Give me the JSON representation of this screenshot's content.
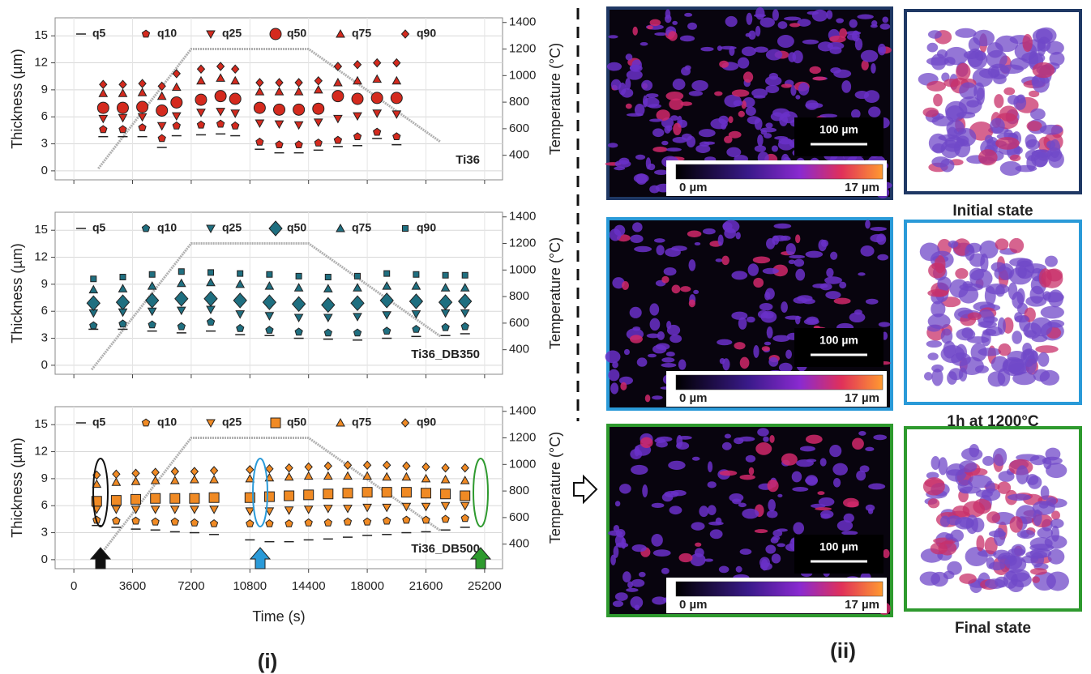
{
  "chart_data": [
    {
      "type": "scatter",
      "annotation": "Ti36",
      "annotation_color": "#e02020",
      "color": "#d42a1e",
      "ylabel": "Thickness (µm)",
      "y2label": "Temperature (°C)",
      "xlim": [
        -1150,
        26300
      ],
      "xticks": [
        0,
        3600,
        7200,
        10800,
        14400,
        18000,
        21600,
        25200
      ],
      "ylim": [
        -1,
        17
      ],
      "yticks": [
        0,
        3,
        6,
        9,
        12,
        15
      ],
      "y2lim": [
        215,
        1435
      ],
      "y2ticks": [
        400,
        600,
        800,
        1000,
        1200,
        1400
      ],
      "grid": true,
      "x": [
        1800,
        3000,
        4200,
        5400,
        6300,
        7800,
        9000,
        9900,
        11400,
        12600,
        13800,
        15000,
        16200,
        17400,
        18600,
        19800
      ],
      "series": [
        {
          "name": "q5",
          "marker": "dash",
          "values": [
            3.8,
            3.8,
            3.8,
            2.6,
            3.9,
            4.0,
            4.1,
            3.9,
            2.4,
            2.0,
            2.0,
            2.3,
            2.7,
            2.8,
            3.6,
            2.9
          ]
        },
        {
          "name": "q10",
          "marker": "pentagon",
          "values": [
            4.6,
            4.6,
            4.8,
            3.6,
            5.0,
            5.1,
            5.2,
            5.0,
            3.2,
            2.9,
            2.9,
            3.1,
            3.4,
            3.8,
            4.3,
            3.8
          ]
        },
        {
          "name": "q25",
          "marker": "triangle-down",
          "values": [
            5.8,
            5.9,
            6.0,
            5.0,
            6.1,
            6.5,
            6.6,
            6.4,
            5.3,
            5.2,
            5.1,
            5.4,
            5.8,
            6.1,
            6.4,
            6.3
          ]
        },
        {
          "name": "q50",
          "marker": "circle",
          "values": [
            7.0,
            7.0,
            7.1,
            6.7,
            7.6,
            7.9,
            8.3,
            8.0,
            7.0,
            6.8,
            6.8,
            6.9,
            8.3,
            8.0,
            8.1,
            8.1
          ]
        },
        {
          "name": "q75",
          "marker": "triangle-up",
          "values": [
            8.6,
            8.6,
            8.7,
            8.3,
            9.3,
            10.0,
            10.3,
            10.0,
            8.8,
            8.8,
            8.8,
            9.0,
            9.8,
            10.0,
            10.2,
            10.0
          ]
        },
        {
          "name": "q90",
          "marker": "diamond",
          "values": [
            9.6,
            9.6,
            9.7,
            9.4,
            10.8,
            11.3,
            11.6,
            11.3,
            9.8,
            9.8,
            9.8,
            10.0,
            11.6,
            11.8,
            12.0,
            12.0
          ]
        }
      ],
      "temperature": {
        "axis": "y2",
        "color": "#b0b0b0",
        "x": [
          1500,
          7200,
          14400,
          22500
        ],
        "values": [
          300,
          1200,
          1200,
          500
        ]
      }
    },
    {
      "type": "scatter",
      "annotation": "Ti36_DB350",
      "annotation_color": "#1f6f80",
      "color": "#1f6f80",
      "ylabel": "Thickness (µm)",
      "y2label": "Temperature (°C)",
      "xlim": [
        -1150,
        26300
      ],
      "xticks": [
        0,
        3600,
        7200,
        10800,
        14400,
        18000,
        21600,
        25200
      ],
      "ylim": [
        -1,
        17
      ],
      "yticks": [
        0,
        3,
        6,
        9,
        12,
        15
      ],
      "y2lim": [
        215,
        1435
      ],
      "y2ticks": [
        400,
        600,
        800,
        1000,
        1200,
        1400
      ],
      "grid": true,
      "x": [
        1200,
        3000,
        4800,
        6600,
        8400,
        10200,
        12000,
        13800,
        15600,
        17400,
        19200,
        21000,
        22800,
        24000
      ],
      "series": [
        {
          "name": "q5",
          "marker": "dash",
          "values": [
            4.0,
            4.0,
            3.8,
            3.6,
            3.8,
            3.4,
            3.3,
            3.0,
            2.9,
            2.8,
            3.0,
            3.2,
            3.3,
            3.5
          ]
        },
        {
          "name": "q10",
          "marker": "pentagon",
          "values": [
            4.4,
            4.6,
            4.5,
            4.3,
            4.8,
            4.1,
            3.9,
            3.7,
            3.6,
            3.6,
            3.8,
            4.0,
            4.2,
            4.3
          ]
        },
        {
          "name": "q25",
          "marker": "triangle-down",
          "values": [
            5.8,
            5.9,
            6.0,
            6.1,
            6.2,
            5.7,
            5.5,
            5.3,
            5.3,
            5.4,
            5.6,
            5.7,
            5.8,
            5.8
          ]
        },
        {
          "name": "q50",
          "marker": "diamond-large",
          "values": [
            6.9,
            7.0,
            7.2,
            7.4,
            7.4,
            7.2,
            7.0,
            6.8,
            6.7,
            6.9,
            7.2,
            7.1,
            7.0,
            7.1
          ]
        },
        {
          "name": "q75",
          "marker": "triangle-up",
          "values": [
            8.4,
            8.5,
            8.8,
            9.1,
            9.2,
            9.0,
            8.8,
            8.6,
            8.5,
            8.6,
            8.8,
            8.8,
            8.6,
            8.6
          ]
        },
        {
          "name": "q90",
          "marker": "square",
          "values": [
            9.6,
            9.8,
            10.1,
            10.4,
            10.3,
            10.2,
            10.1,
            9.9,
            9.8,
            9.9,
            10.2,
            10.1,
            10.0,
            10.0
          ]
        }
      ],
      "temperature": {
        "axis": "y2",
        "color": "#b0b0b0",
        "x": [
          1100,
          7200,
          14400,
          22500
        ],
        "values": [
          250,
          1200,
          1200,
          500
        ]
      }
    },
    {
      "type": "scatter",
      "annotation": "Ti36_DB500",
      "annotation_color": "#f08a24",
      "color": "#f08a24",
      "ylabel": "Thickness (µm)",
      "y2label": "Temperature (°C)",
      "xlabel": "Time (s)",
      "xlim": [
        -1150,
        26300
      ],
      "xticks": [
        0,
        3600,
        7200,
        10800,
        14400,
        18000,
        21600,
        25200
      ],
      "ylim": [
        -1,
        17
      ],
      "yticks": [
        0,
        3,
        6,
        9,
        12,
        15
      ],
      "y2lim": [
        215,
        1435
      ],
      "y2ticks": [
        400,
        600,
        800,
        1000,
        1200,
        1400
      ],
      "grid": true,
      "x": [
        1400,
        2600,
        3800,
        5000,
        6200,
        7400,
        8600,
        10800,
        12000,
        13200,
        14400,
        15600,
        16800,
        18000,
        19200,
        20400,
        21600,
        22800,
        24000
      ],
      "series": [
        {
          "name": "q5",
          "marker": "dash",
          "values": [
            3.8,
            3.6,
            3.4,
            3.3,
            3.1,
            3.0,
            2.8,
            2.2,
            2.0,
            2.0,
            2.2,
            2.3,
            2.5,
            2.7,
            2.8,
            3.0,
            3.1,
            3.3,
            3.6
          ]
        },
        {
          "name": "q10",
          "marker": "pentagon",
          "values": [
            4.4,
            4.3,
            4.3,
            4.2,
            4.2,
            4.1,
            4.0,
            4.0,
            4.0,
            4.0,
            4.1,
            4.1,
            4.2,
            4.2,
            4.3,
            4.4,
            4.4,
            4.5,
            4.6
          ]
        },
        {
          "name": "q25",
          "marker": "triangle-down",
          "values": [
            5.6,
            5.6,
            5.6,
            5.6,
            5.6,
            5.6,
            5.6,
            5.4,
            5.4,
            5.5,
            5.6,
            5.7,
            5.7,
            5.8,
            5.8,
            5.9,
            5.9,
            6.0,
            6.0
          ]
        },
        {
          "name": "q50",
          "marker": "square-large",
          "values": [
            6.5,
            6.6,
            6.7,
            6.8,
            6.8,
            6.8,
            6.9,
            6.9,
            7.0,
            7.1,
            7.2,
            7.3,
            7.4,
            7.5,
            7.5,
            7.5,
            7.4,
            7.3,
            7.1
          ]
        },
        {
          "name": "q75",
          "marker": "triangle-up",
          "values": [
            8.4,
            8.6,
            8.7,
            8.8,
            8.8,
            8.9,
            8.9,
            9.0,
            9.1,
            9.2,
            9.3,
            9.3,
            9.3,
            9.3,
            9.2,
            9.2,
            9.0,
            8.9,
            8.8
          ]
        },
        {
          "name": "q90",
          "marker": "diamond",
          "values": [
            9.4,
            9.5,
            9.6,
            9.7,
            9.8,
            9.8,
            9.9,
            10.0,
            10.1,
            10.2,
            10.3,
            10.4,
            10.5,
            10.5,
            10.5,
            10.4,
            10.3,
            10.2,
            10.2
          ]
        }
      ],
      "temperature": {
        "axis": "y2",
        "color": "#b0b0b0",
        "x": [
          1500,
          7200,
          14400,
          22500
        ],
        "values": [
          300,
          1200,
          1200,
          500
        ]
      }
    }
  ],
  "figure": {
    "label_left": "(i)",
    "label_right": "(ii)",
    "panels": [
      {
        "scale": "100 µm",
        "cbar_min": "0 µm",
        "cbar_max": "17 µm",
        "caption": "Initial state",
        "color": "#1f3864"
      },
      {
        "scale": "100 µm",
        "cbar_min": "0 µm",
        "cbar_max": "17 µm",
        "caption": "1h at 1200°C",
        "color": "#2a9ad8"
      },
      {
        "scale": "100 µm",
        "cbar_min": "0 µm",
        "cbar_max": "17 µm",
        "caption": "Final state",
        "color": "#2e9a2e"
      }
    ]
  }
}
